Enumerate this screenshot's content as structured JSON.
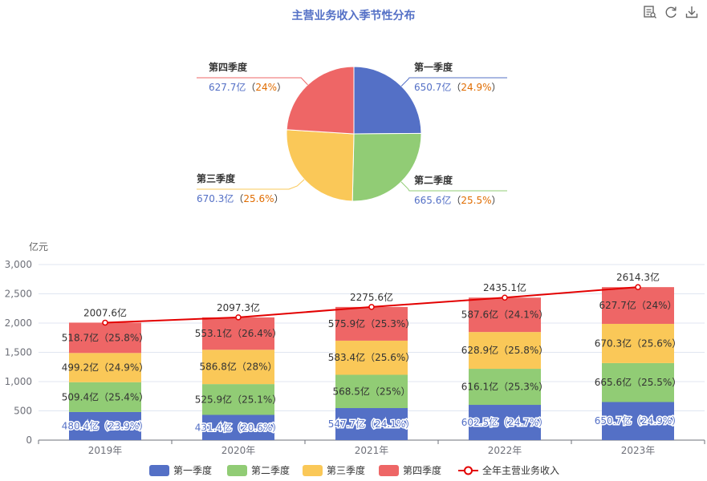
{
  "title": "主营业务收入季节性分布",
  "toolbox": {
    "data_view": "data-view-icon",
    "restore": "restore-icon",
    "save": "download-icon"
  },
  "colors": {
    "q1": "#5470c6",
    "q2": "#91cc75",
    "q3": "#fac858",
    "q4": "#ee6666",
    "line": "#e30000",
    "pct": "#e06c00"
  },
  "chart_data": [
    {
      "type": "pie",
      "title": "",
      "categories": [
        "第一季度",
        "第二季度",
        "第三季度",
        "第四季度"
      ],
      "values": [
        650.7,
        665.6,
        670.3,
        627.7
      ],
      "value_labels": [
        "650.7亿",
        "665.6亿",
        "670.3亿",
        "627.7亿"
      ],
      "percent_labels": [
        "24.9%",
        "25.5%",
        "25.6%",
        "24%"
      ]
    },
    {
      "type": "bar",
      "stacked": true,
      "ylabel": "亿元",
      "ylim": [
        0,
        3000
      ],
      "yticks": [
        0,
        500,
        1000,
        1500,
        2000,
        2500,
        3000
      ],
      "ytick_labels": [
        "0",
        "500",
        "1,000",
        "1,500",
        "2,000",
        "2,500",
        "3,000"
      ],
      "categories": [
        "2019年",
        "2020年",
        "2021年",
        "2022年",
        "2023年"
      ],
      "series": [
        {
          "name": "第一季度",
          "values": [
            480.4,
            431.4,
            547.7,
            602.5,
            650.7
          ],
          "labels": [
            "480.4亿（23.9%）",
            "431.4亿（20.6%）",
            "547.7亿（24.1%）",
            "602.5亿（24.7%）",
            "650.7亿（24.9%）"
          ]
        },
        {
          "name": "第二季度",
          "values": [
            509.4,
            525.9,
            568.5,
            616.1,
            665.6
          ],
          "labels": [
            "509.4亿（25.4%）",
            "525.9亿（25.1%）",
            "568.5亿（25%）",
            "616.1亿（25.3%）",
            "665.6亿（25.5%）"
          ]
        },
        {
          "name": "第三季度",
          "values": [
            499.2,
            586.8,
            583.4,
            628.9,
            670.3
          ],
          "labels": [
            "499.2亿（24.9%）",
            "586.8亿（28%）",
            "583.4亿（25.6%）",
            "628.9亿（25.8%）",
            "670.3亿（25.6%）"
          ]
        },
        {
          "name": "第四季度",
          "values": [
            518.7,
            553.1,
            575.9,
            587.6,
            627.7
          ],
          "labels": [
            "518.7亿（25.8%）",
            "553.1亿（26.4%）",
            "575.9亿（25.3%）",
            "587.6亿（24.1%）",
            "627.7亿（24%）"
          ]
        }
      ],
      "line": {
        "name": "全年主营业务收入",
        "values": [
          2007.6,
          2097.3,
          2275.6,
          2435.1,
          2614.3
        ],
        "labels": [
          "2007.6亿",
          "2097.3亿",
          "2275.6亿",
          "2435.1亿",
          "2614.3亿"
        ]
      },
      "legend_position": "bottom"
    }
  ]
}
